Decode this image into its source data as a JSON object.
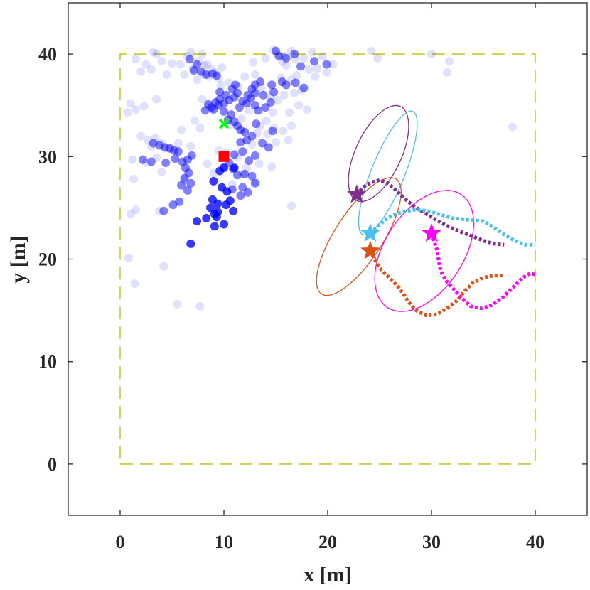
{
  "chart_data": {
    "type": "scatter",
    "title": "",
    "xlabel": "x [m]",
    "ylabel": "y [m]",
    "xlim": [
      -5,
      45
    ],
    "ylim": [
      -5,
      45
    ],
    "xticks": [
      0,
      10,
      20,
      30,
      40
    ],
    "yticks": [
      0,
      10,
      20,
      30,
      40
    ],
    "grid": false,
    "boundary": {
      "x": [
        0,
        40,
        40,
        0,
        0
      ],
      "y": [
        0,
        0,
        40,
        40,
        0
      ],
      "color": "#c8c832",
      "style": "dashed"
    },
    "faint_particles": {
      "color": "#0000ff",
      "opacity": 0.12,
      "points": [
        [
          1.5,
          39.5
        ],
        [
          2.5,
          39.0
        ],
        [
          3.5,
          40.0
        ],
        [
          4.0,
          39.3
        ],
        [
          3.0,
          38.5
        ],
        [
          4.5,
          38.0
        ],
        [
          1.0,
          35.2
        ],
        [
          1.5,
          34.6
        ],
        [
          2.3,
          34.9
        ],
        [
          3.5,
          35.6
        ],
        [
          0.7,
          34.3
        ],
        [
          2.0,
          32.0
        ],
        [
          3.0,
          31.0
        ],
        [
          1.2,
          29.7
        ],
        [
          2.5,
          29.4
        ],
        [
          1.3,
          27.8
        ],
        [
          1.5,
          24.8
        ],
        [
          1.0,
          24.4
        ],
        [
          3.8,
          24.7
        ],
        [
          0.8,
          20.1
        ],
        [
          1.4,
          17.6
        ],
        [
          4.2,
          19.3
        ],
        [
          5.5,
          15.6
        ],
        [
          7.7,
          15.4
        ],
        [
          16.5,
          25.2
        ],
        [
          4.0,
          28.5
        ],
        [
          3.5,
          29.9
        ],
        [
          6.2,
          27.7
        ],
        [
          5.8,
          39.0
        ],
        [
          6.5,
          39.8
        ],
        [
          7.0,
          38.6
        ],
        [
          6.2,
          38.0
        ],
        [
          7.6,
          39.3
        ],
        [
          8.0,
          38.0
        ],
        [
          8.6,
          37.8
        ],
        [
          8.4,
          39.0
        ],
        [
          8.8,
          38.5
        ],
        [
          9.2,
          38.2
        ],
        [
          9.5,
          37.6
        ],
        [
          8.1,
          38.9
        ],
        [
          6.8,
          40.2
        ],
        [
          7.4,
          37.5
        ],
        [
          12.8,
          39.2
        ],
        [
          14.0,
          39.6
        ],
        [
          14.8,
          40.4
        ],
        [
          15.3,
          39.9
        ],
        [
          15.9,
          39.8
        ],
        [
          16.5,
          40.3
        ],
        [
          15.6,
          39.3
        ],
        [
          16.0,
          38.9
        ],
        [
          16.9,
          39.5
        ],
        [
          17.7,
          39.6
        ],
        [
          18.5,
          40.2
        ],
        [
          19.5,
          39.8
        ],
        [
          19.0,
          38.6
        ],
        [
          18.2,
          38.5
        ],
        [
          17.0,
          37.9
        ],
        [
          16.5,
          37.5
        ],
        [
          15.5,
          37.7
        ],
        [
          19.9,
          38.2
        ],
        [
          18.8,
          37.8
        ],
        [
          20.5,
          39.0
        ],
        [
          17.5,
          36.5
        ],
        [
          16.8,
          36.2
        ],
        [
          15.8,
          36.0
        ],
        [
          15.2,
          35.5
        ],
        [
          14.7,
          34.3
        ],
        [
          14.5,
          35.8
        ],
        [
          13.6,
          36.7
        ],
        [
          14.1,
          33.5
        ],
        [
          14.8,
          32.8
        ],
        [
          14.2,
          32.2
        ],
        [
          13.5,
          33.0
        ],
        [
          15.0,
          31.4
        ],
        [
          16.2,
          31.6
        ],
        [
          15.7,
          32.5
        ],
        [
          16.5,
          33.0
        ],
        [
          13.2,
          32.3
        ],
        [
          12.7,
          31.2
        ],
        [
          13.4,
          29.3
        ],
        [
          14.6,
          29.0
        ],
        [
          12.2,
          28.9
        ],
        [
          11.8,
          28.3
        ],
        [
          13.1,
          27.5
        ],
        [
          11.3,
          29.9
        ],
        [
          10.0,
          29.0
        ],
        [
          10.8,
          27.3
        ],
        [
          9.0,
          28.4
        ],
        [
          8.4,
          29.3
        ],
        [
          6.8,
          31.0
        ],
        [
          5.6,
          31.3
        ],
        [
          4.6,
          30.8
        ],
        [
          4.0,
          31.3
        ],
        [
          3.4,
          31.8
        ],
        [
          2.7,
          31.6
        ],
        [
          5.9,
          32.6
        ],
        [
          7.2,
          33.5
        ],
        [
          7.7,
          32.8
        ],
        [
          8.5,
          34.9
        ],
        [
          7.9,
          35.6
        ],
        [
          9.7,
          36.9
        ],
        [
          10.5,
          37.2
        ],
        [
          11.4,
          36.8
        ],
        [
          12.0,
          37.8
        ],
        [
          13.0,
          38.0
        ],
        [
          24.2,
          40.3
        ],
        [
          24.8,
          39.6
        ],
        [
          30.0,
          40.0
        ],
        [
          31.7,
          39.3
        ],
        [
          31.5,
          38.2
        ],
        [
          37.8,
          32.9
        ],
        [
          3.2,
          40.2
        ],
        [
          5.0,
          39.1
        ],
        [
          2.0,
          38.3
        ],
        [
          7.9,
          40.0
        ],
        [
          9.8,
          38.7
        ],
        [
          17.2,
          35.0
        ],
        [
          18.0,
          34.6
        ],
        [
          16.3,
          34.3
        ],
        [
          11.7,
          33.7
        ],
        [
          10.6,
          33.1
        ],
        [
          12.4,
          34.5
        ],
        [
          10.2,
          30.4
        ],
        [
          9.5,
          30.6
        ]
      ]
    },
    "mid_particles": {
      "color": "#0000ff",
      "opacity": 0.5,
      "points": [
        [
          9.0,
          34.6
        ],
        [
          9.5,
          35.0
        ],
        [
          10.0,
          35.2
        ],
        [
          10.5,
          35.5
        ],
        [
          11.0,
          35.8
        ],
        [
          11.3,
          36.2
        ],
        [
          10.8,
          36.6
        ],
        [
          10.2,
          36.0
        ],
        [
          9.6,
          35.6
        ],
        [
          9.2,
          35.3
        ],
        [
          8.8,
          34.8
        ],
        [
          10.0,
          34.4
        ],
        [
          10.7,
          34.1
        ],
        [
          11.5,
          34.8
        ],
        [
          11.8,
          35.4
        ],
        [
          12.3,
          36.0
        ],
        [
          12.7,
          36.6
        ],
        [
          13.0,
          37.0
        ],
        [
          13.5,
          37.3
        ],
        [
          13.0,
          36.2
        ],
        [
          12.6,
          35.7
        ],
        [
          12.2,
          35.2
        ],
        [
          11.1,
          37.0
        ],
        [
          9.6,
          36.3
        ],
        [
          8.5,
          35.1
        ],
        [
          8.2,
          34.5
        ],
        [
          10.4,
          33.6
        ],
        [
          11.0,
          33.4
        ],
        [
          11.3,
          33.0
        ],
        [
          11.6,
          32.6
        ],
        [
          12.0,
          32.4
        ],
        [
          11.6,
          31.4
        ],
        [
          11.8,
          30.5
        ],
        [
          11.0,
          30.2
        ],
        [
          10.5,
          29.4
        ],
        [
          10.9,
          28.8
        ],
        [
          11.3,
          28.2
        ],
        [
          12.0,
          28.3
        ],
        [
          12.7,
          28.1
        ],
        [
          13.0,
          27.4
        ],
        [
          12.2,
          31.6
        ],
        [
          12.7,
          32.0
        ],
        [
          13.1,
          33.2
        ],
        [
          13.3,
          34.5
        ],
        [
          14.0,
          34.8
        ],
        [
          14.5,
          35.3
        ],
        [
          13.8,
          36.0
        ],
        [
          14.6,
          37.0
        ],
        [
          15.6,
          37.3
        ],
        [
          16.0,
          37.0
        ],
        [
          16.9,
          37.2
        ],
        [
          17.7,
          36.7
        ],
        [
          14.8,
          36.3
        ],
        [
          13.0,
          35.0
        ],
        [
          15.3,
          39.8
        ],
        [
          16.0,
          39.6
        ],
        [
          16.8,
          40.0
        ],
        [
          15.0,
          40.3
        ],
        [
          7.4,
          39.0
        ],
        [
          7.8,
          38.3
        ],
        [
          8.3,
          38.0
        ],
        [
          8.9,
          38.1
        ],
        [
          9.3,
          37.9
        ],
        [
          6.7,
          39.5
        ],
        [
          7.1,
          38.4
        ],
        [
          3.2,
          31.3
        ],
        [
          3.8,
          31.1
        ],
        [
          4.3,
          30.9
        ],
        [
          4.8,
          30.8
        ],
        [
          5.2,
          30.6
        ],
        [
          5.6,
          30.5
        ],
        [
          5.3,
          29.8
        ],
        [
          4.4,
          29.4
        ],
        [
          3.0,
          29.5
        ],
        [
          2.2,
          29.7
        ],
        [
          6.0,
          29.5
        ],
        [
          6.5,
          29.7
        ],
        [
          6.9,
          30.1
        ],
        [
          6.3,
          28.9
        ],
        [
          6.6,
          28.4
        ],
        [
          6.2,
          27.9
        ],
        [
          6.8,
          27.4
        ],
        [
          5.9,
          27.2
        ],
        [
          6.5,
          26.7
        ],
        [
          5.7,
          25.6
        ],
        [
          5.1,
          25.3
        ],
        [
          4.2,
          24.7
        ],
        [
          11.8,
          27.0
        ],
        [
          12.3,
          26.5
        ],
        [
          11.6,
          26.2
        ],
        [
          10.8,
          26.8
        ],
        [
          14.7,
          32.5
        ],
        [
          14.3,
          30.9
        ],
        [
          13.7,
          31.3
        ],
        [
          13.0,
          30.1
        ],
        [
          12.4,
          29.6
        ],
        [
          17.4,
          38.8
        ],
        [
          19.9,
          39.0
        ],
        [
          18.7,
          39.3
        ]
      ]
    },
    "solid_particles": {
      "color": "#0000ff",
      "opacity": 0.78,
      "points": [
        [
          9.3,
          24.1
        ],
        [
          9.1,
          24.4
        ],
        [
          9.4,
          24.6
        ],
        [
          8.7,
          25.0
        ],
        [
          8.9,
          25.8
        ],
        [
          9.4,
          25.4
        ],
        [
          10.2,
          25.3
        ],
        [
          10.6,
          25.7
        ],
        [
          10.3,
          26.6
        ],
        [
          9.8,
          27.0
        ],
        [
          9.0,
          27.6
        ],
        [
          9.6,
          28.6
        ],
        [
          10.0,
          28.9
        ],
        [
          11.0,
          28.9
        ],
        [
          7.4,
          23.7
        ],
        [
          6.8,
          21.5
        ],
        [
          8.3,
          24.0
        ],
        [
          10.9,
          24.7
        ],
        [
          9.1,
          23.2
        ],
        [
          10.0,
          23.4
        ]
      ]
    },
    "estimate_marker": {
      "x": 10.0,
      "y": 33.2,
      "color": "#00ff00",
      "shape": "x"
    },
    "true_position": {
      "x": 10.0,
      "y": 30.0,
      "color": "#ff0000",
      "shape": "square"
    },
    "targets": [
      {
        "color": "#7e2f8e",
        "star": [
          22.8,
          26.3
        ],
        "ellipse": {
          "cx": 24.9,
          "cy": 30.3,
          "rx": 2.2,
          "ry": 5.0,
          "angle": 25
        },
        "trajectory": [
          [
            22.8,
            26.3
          ],
          [
            23.4,
            27.0
          ],
          [
            24.2,
            27.5
          ],
          [
            25.0,
            27.7
          ],
          [
            25.8,
            27.4
          ],
          [
            26.5,
            26.8
          ],
          [
            27.2,
            26.1
          ],
          [
            28.0,
            25.4
          ],
          [
            29.0,
            24.7
          ],
          [
            30.0,
            24.1
          ],
          [
            31.0,
            23.5
          ],
          [
            32.0,
            23.0
          ],
          [
            33.0,
            22.6
          ],
          [
            34.0,
            22.2
          ],
          [
            35.0,
            21.8
          ],
          [
            36.0,
            21.5
          ],
          [
            37.0,
            21.4
          ]
        ]
      },
      {
        "color": "#4dbeee",
        "star": [
          24.1,
          22.5
        ],
        "ellipse": {
          "cx": 25.8,
          "cy": 28.4,
          "rx": 1.6,
          "ry": 6.4,
          "angle": 22
        },
        "trajectory": [
          [
            24.1,
            22.5
          ],
          [
            24.8,
            23.2
          ],
          [
            25.5,
            23.8
          ],
          [
            26.3,
            24.3
          ],
          [
            27.2,
            24.6
          ],
          [
            28.2,
            24.8
          ],
          [
            29.0,
            24.8
          ],
          [
            30.0,
            24.6
          ],
          [
            31.0,
            24.3
          ],
          [
            32.0,
            24.0
          ],
          [
            33.0,
            23.9
          ],
          [
            34.0,
            23.8
          ],
          [
            35.0,
            23.7
          ],
          [
            36.0,
            23.1
          ],
          [
            37.0,
            22.4
          ],
          [
            38.0,
            21.8
          ],
          [
            39.0,
            21.4
          ],
          [
            40.0,
            21.4
          ]
        ]
      },
      {
        "color": "#d95319",
        "star": [
          24.1,
          20.8
        ],
        "ellipse": {
          "cx": 23.0,
          "cy": 22.2,
          "rx": 2.3,
          "ry": 6.6,
          "angle": 33
        },
        "trajectory": [
          [
            24.1,
            20.8
          ],
          [
            24.6,
            19.8
          ],
          [
            25.2,
            18.9
          ],
          [
            26.0,
            18.1
          ],
          [
            26.8,
            17.3
          ],
          [
            27.3,
            16.6
          ],
          [
            27.8,
            15.8
          ],
          [
            28.5,
            15.0
          ],
          [
            29.5,
            14.5
          ],
          [
            30.5,
            14.6
          ],
          [
            31.5,
            15.2
          ],
          [
            32.5,
            16.0
          ],
          [
            33.3,
            17.0
          ],
          [
            34.0,
            17.7
          ],
          [
            35.0,
            18.2
          ],
          [
            36.0,
            18.4
          ],
          [
            37.0,
            18.4
          ]
        ]
      },
      {
        "color": "#ff00ff",
        "star": [
          30.0,
          22.5
        ],
        "ellipse": {
          "cx": 29.3,
          "cy": 20.8,
          "rx": 3.8,
          "ry": 6.5,
          "angle": 33
        },
        "trajectory": [
          [
            30.0,
            22.5
          ],
          [
            30.5,
            21.0
          ],
          [
            30.7,
            19.8
          ],
          [
            30.9,
            18.8
          ],
          [
            31.4,
            17.9
          ],
          [
            32.2,
            17.0
          ],
          [
            33.0,
            16.1
          ],
          [
            33.8,
            15.4
          ],
          [
            34.8,
            15.2
          ],
          [
            35.8,
            15.5
          ],
          [
            36.8,
            16.2
          ],
          [
            37.8,
            17.2
          ],
          [
            38.8,
            18.2
          ],
          [
            39.5,
            18.6
          ],
          [
            40.0,
            18.5
          ]
        ]
      }
    ]
  }
}
